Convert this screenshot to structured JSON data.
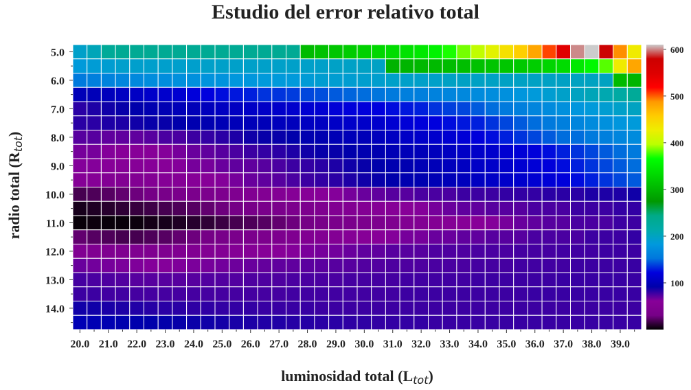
{
  "chart_data": {
    "type": "heatmap",
    "title": "Estudio del error relativo total",
    "xlabel": "luminosidad total (L",
    "xlabel_sub": "tot",
    "xlabel_end": ")",
    "ylabel": "radio total (R",
    "ylabel_sub": "tot",
    "ylabel_end": ")",
    "x": {
      "start": 20.0,
      "step": 0.5,
      "count": 40,
      "tick_labels": [
        "20.0",
        "21.0",
        "22.0",
        "23.0",
        "24.0",
        "25.0",
        "26.0",
        "27.0",
        "28.0",
        "29.0",
        "30.0",
        "31.0",
        "32.0",
        "33.0",
        "34.0",
        "35.0",
        "36.0",
        "37.0",
        "38.0",
        "39.0"
      ]
    },
    "y": {
      "start": 5.0,
      "step": 0.5,
      "count": 20,
      "tick_labels": [
        "5.0",
        "6.0",
        "7.0",
        "8.0",
        "9.0",
        "10.0",
        "11.0",
        "12.0",
        "13.0",
        "14.0"
      ]
    },
    "colorbar": {
      "colormap": "nipy_spectral",
      "range": [
        0,
        610
      ],
      "ticks": [
        "100",
        "200",
        "300",
        "400",
        "500",
        "600"
      ]
    },
    "grid": true,
    "values": [
      [
        195,
        205,
        230,
        233,
        233,
        233,
        233,
        233,
        233,
        233,
        233,
        233,
        233,
        233,
        233,
        233,
        305,
        310,
        315,
        320,
        325,
        330,
        335,
        340,
        345,
        355,
        370,
        385,
        400,
        420,
        440,
        455,
        480,
        505,
        545,
        600,
        610,
        580,
        490,
        430
      ],
      [
        185,
        188,
        190,
        193,
        193,
        193,
        193,
        193,
        193,
        195,
        195,
        195,
        195,
        195,
        195,
        195,
        195,
        195,
        197,
        197,
        198,
        198,
        298,
        300,
        302,
        304,
        306,
        308,
        310,
        313,
        315,
        318,
        322,
        328,
        335,
        345,
        360,
        380,
        430,
        480
      ],
      [
        155,
        160,
        163,
        166,
        169,
        172,
        172,
        175,
        175,
        178,
        178,
        181,
        181,
        184,
        184,
        184,
        187,
        190,
        190,
        190,
        192,
        192,
        195,
        195,
        195,
        195,
        198,
        198,
        198,
        198,
        198,
        198,
        198,
        198,
        198,
        200,
        200,
        200,
        305,
        300
      ],
      [
        100,
        100,
        102,
        105,
        107,
        110,
        112,
        115,
        120,
        122,
        125,
        128,
        130,
        135,
        135,
        137,
        140,
        142,
        145,
        148,
        150,
        152,
        155,
        160,
        160,
        162,
        165,
        168,
        170,
        172,
        175,
        180,
        185,
        190,
        195,
        200,
        205,
        210,
        220,
        230
      ],
      [
        82,
        85,
        88,
        90,
        92,
        95,
        97,
        100,
        100,
        102,
        105,
        105,
        108,
        108,
        110,
        112,
        115,
        115,
        118,
        120,
        120,
        122,
        125,
        128,
        130,
        135,
        138,
        140,
        145,
        150,
        155,
        160,
        165,
        170,
        175,
        180,
        185,
        190,
        195,
        200
      ],
      [
        82,
        82,
        85,
        85,
        88,
        90,
        90,
        92,
        95,
        95,
        98,
        100,
        100,
        100,
        102,
        102,
        105,
        105,
        108,
        110,
        110,
        112,
        115,
        118,
        120,
        122,
        125,
        128,
        130,
        135,
        140,
        145,
        150,
        155,
        160,
        165,
        170,
        175,
        180,
        185
      ],
      [
        72,
        72,
        70,
        70,
        70,
        72,
        75,
        75,
        78,
        80,
        82,
        85,
        88,
        90,
        90,
        92,
        95,
        95,
        98,
        100,
        100,
        102,
        105,
        108,
        110,
        112,
        115,
        118,
        120,
        125,
        130,
        135,
        140,
        145,
        150,
        150,
        155,
        160,
        165,
        170
      ],
      [
        65,
        65,
        62,
        60,
        60,
        60,
        62,
        65,
        68,
        70,
        72,
        75,
        78,
        80,
        82,
        85,
        88,
        90,
        90,
        92,
        95,
        95,
        98,
        100,
        100,
        102,
        105,
        108,
        110,
        112,
        115,
        118,
        120,
        125,
        130,
        135,
        140,
        145,
        150,
        155
      ],
      [
        62,
        62,
        60,
        58,
        58,
        60,
        60,
        62,
        65,
        65,
        68,
        70,
        70,
        72,
        75,
        78,
        80,
        82,
        85,
        88,
        90,
        92,
        95,
        95,
        98,
        100,
        102,
        105,
        108,
        110,
        112,
        115,
        118,
        120,
        125,
        130,
        135,
        140,
        145,
        150
      ],
      [
        55,
        55,
        52,
        50,
        50,
        52,
        55,
        55,
        58,
        60,
        62,
        65,
        68,
        70,
        72,
        75,
        78,
        80,
        82,
        85,
        88,
        90,
        92,
        95,
        95,
        98,
        100,
        102,
        105,
        108,
        110,
        112,
        115,
        118,
        120,
        125,
        130,
        135,
        140,
        145
      ],
      [
        18,
        20,
        22,
        25,
        28,
        30,
        32,
        35,
        38,
        40,
        42,
        45,
        48,
        50,
        52,
        55,
        58,
        60,
        62,
        65,
        68,
        70,
        72,
        72,
        75,
        75,
        75,
        78,
        78,
        78,
        80,
        80,
        80,
        82,
        82,
        82,
        85,
        85,
        85,
        88
      ],
      [
        6,
        8,
        10,
        12,
        14,
        16,
        18,
        20,
        22,
        25,
        28,
        30,
        32,
        35,
        38,
        40,
        42,
        45,
        48,
        50,
        52,
        55,
        58,
        60,
        62,
        65,
        68,
        70,
        70,
        72,
        72,
        72,
        75,
        75,
        75,
        78,
        78,
        78,
        80,
        80
      ],
      [
        2,
        3,
        2,
        2,
        3,
        5,
        6,
        8,
        10,
        12,
        15,
        18,
        20,
        22,
        25,
        28,
        30,
        32,
        35,
        38,
        40,
        42,
        45,
        48,
        50,
        52,
        55,
        58,
        60,
        62,
        65,
        68,
        70,
        72,
        72,
        75,
        75,
        75,
        78,
        78
      ],
      [
        25,
        22,
        20,
        18,
        18,
        20,
        22,
        25,
        28,
        30,
        32,
        35,
        38,
        40,
        42,
        45,
        48,
        50,
        52,
        55,
        58,
        60,
        62,
        65,
        65,
        68,
        68,
        70,
        70,
        72,
        72,
        72,
        75,
        75,
        75,
        75,
        78,
        78,
        78,
        80
      ],
      [
        48,
        46,
        45,
        44,
        44,
        44,
        45,
        46,
        48,
        50,
        52,
        54,
        56,
        58,
        60,
        62,
        64,
        65,
        66,
        68,
        70,
        70,
        72,
        72,
        72,
        74,
        74,
        74,
        75,
        75,
        75,
        76,
        76,
        76,
        77,
        77,
        77,
        78,
        78,
        78
      ],
      [
        68,
        66,
        65,
        64,
        63,
        62,
        62,
        63,
        64,
        65,
        66,
        67,
        68,
        69,
        70,
        70,
        71,
        71,
        72,
        72,
        73,
        73,
        74,
        74,
        74,
        75,
        75,
        75,
        76,
        76,
        76,
        77,
        77,
        77,
        77,
        78,
        78,
        78,
        78,
        79
      ],
      [
        76,
        75,
        74,
        73,
        72,
        72,
        72,
        72,
        72,
        73,
        73,
        73,
        74,
        74,
        74,
        75,
        75,
        75,
        75,
        76,
        76,
        76,
        76,
        77,
        77,
        77,
        77,
        77,
        78,
        78,
        78,
        78,
        78,
        78,
        79,
        79,
        79,
        79,
        79,
        79
      ],
      [
        78,
        78,
        77,
        77,
        76,
        76,
        76,
        76,
        76,
        76,
        76,
        76,
        76,
        76,
        76,
        77,
        77,
        77,
        77,
        77,
        77,
        77,
        77,
        78,
        78,
        78,
        78,
        78,
        78,
        78,
        78,
        78,
        79,
        79,
        79,
        79,
        79,
        79,
        79,
        79
      ],
      [
        88,
        88,
        86,
        85,
        84,
        83,
        82,
        82,
        81,
        81,
        80,
        80,
        80,
        79,
        79,
        79,
        79,
        78,
        78,
        78,
        78,
        78,
        78,
        78,
        78,
        78,
        78,
        78,
        78,
        78,
        78,
        78,
        78,
        78,
        78,
        78,
        78,
        78,
        78,
        78
      ],
      [
        98,
        97,
        96,
        94,
        93,
        92,
        91,
        90,
        89,
        88,
        87,
        86,
        85,
        84,
        84,
        83,
        83,
        82,
        82,
        81,
        81,
        80,
        80,
        80,
        80,
        79,
        79,
        79,
        79,
        79,
        79,
        79,
        79,
        79,
        79,
        79,
        79,
        79,
        79,
        79
      ]
    ]
  }
}
